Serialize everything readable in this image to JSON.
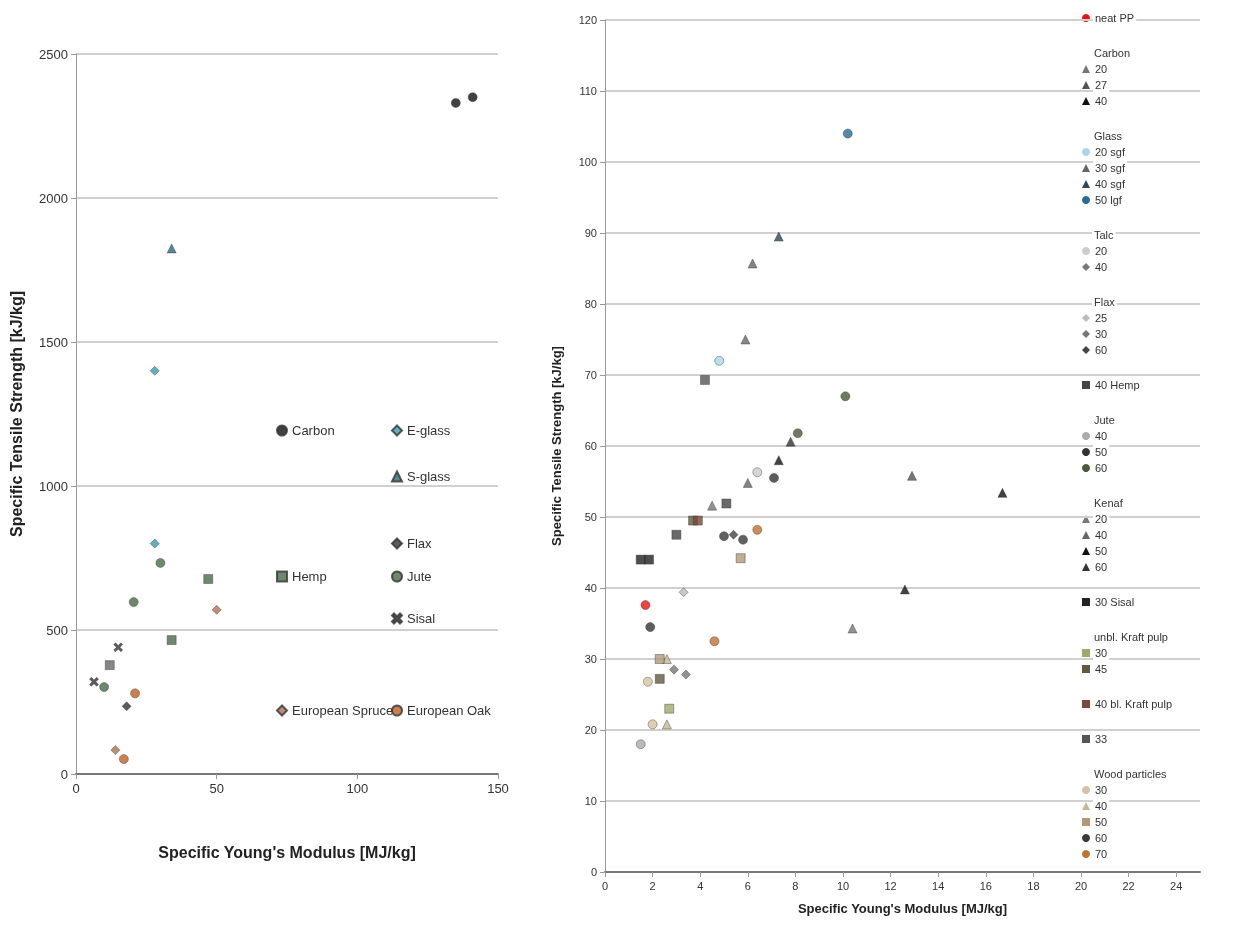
{
  "chart_data": [
    {
      "type": "scatter",
      "xlabel": "Specific Young's Modulus [MJ/kg]",
      "ylabel": "Specific Tensile Strength [kJ/kg]",
      "xlim": [
        0,
        150
      ],
      "xticks": [
        0,
        50,
        100,
        150
      ],
      "ylim": [
        0,
        2500
      ],
      "yticks": [
        0,
        500,
        1000,
        1500,
        2000,
        2500
      ],
      "grid": "y",
      "legend": "bottom right",
      "series": [
        {
          "name": "Carbon",
          "color": "#111111",
          "marker": "circle",
          "x": [
            135,
            141
          ],
          "values": [
            2330,
            2350
          ]
        },
        {
          "name": "E-glass",
          "color": "#3a9ab0",
          "marker": "diamond",
          "x": [
            28,
            28
          ],
          "values": [
            1400,
            800
          ]
        },
        {
          "name": "S-glass",
          "color": "#2a6a7a",
          "marker": "triangle",
          "x": [
            34
          ],
          "values": [
            1825
          ]
        },
        {
          "color": "#666666",
          "marker": "square",
          "x": [
            12
          ],
          "values": [
            378
          ]
        },
        {
          "name": "Flax",
          "color": "#333333",
          "marker": "diamond",
          "x": [
            18
          ],
          "values": [
            235
          ]
        },
        {
          "name": "Hemp",
          "color": "#4a6a4a",
          "marker": "square",
          "x": [
            47,
            34
          ],
          "values": [
            677,
            465
          ]
        },
        {
          "name": "Jute",
          "color": "#4a6a4a",
          "marker": "circle",
          "x": [
            10,
            20.5,
            30
          ],
          "values": [
            302,
            597,
            733
          ]
        },
        {
          "name": "Sisal",
          "color": "#333333",
          "marker": "cross",
          "x": [
            6.4,
            15
          ],
          "values": [
            320,
            440
          ]
        },
        {
          "name": "European Spruce",
          "color": "#b07050",
          "marker": "diamond",
          "x": [
            14,
            50
          ],
          "values": [
            83,
            570
          ]
        },
        {
          "name": "European Oak",
          "color": "#c06020",
          "marker": "circle",
          "x": [
            17,
            21
          ],
          "values": [
            52,
            280
          ]
        }
      ]
    },
    {
      "type": "scatter",
      "xlabel": "Specific Young's Modulus [MJ/kg]",
      "ylabel": "Specific Tensile Strength [kJ/kg]",
      "xlim": [
        0,
        25
      ],
      "xticks": [
        0,
        2,
        4,
        6,
        8,
        10,
        12,
        14,
        16,
        18,
        20,
        22,
        24
      ],
      "ylim": [
        0,
        120
      ],
      "yticks": [
        0,
        10,
        20,
        30,
        40,
        50,
        60,
        70,
        80,
        90,
        100,
        110,
        120
      ],
      "grid": "y",
      "legend": "right",
      "annotations": [
        "Carbon",
        "Glass",
        "Talc",
        "Flax",
        "Jute",
        "Kenaf",
        "unbl. Kraft pulp",
        "Wood particles"
      ],
      "series": [
        {
          "name": "neat PP",
          "color": "#ee1111",
          "marker": "circle",
          "x": [
            1.7
          ],
          "values": [
            37.6
          ]
        },
        {
          "name": "20",
          "color": "#777777",
          "marker": "triangle",
          "x": [
            10.4
          ],
          "values": [
            34.3
          ]
        },
        {
          "name": "27",
          "color": "#555555",
          "marker": "triangle",
          "x": [
            12.9
          ],
          "values": [
            55.8
          ]
        },
        {
          "name": "40",
          "color": "#111111",
          "marker": "triangle",
          "x": [
            12.6,
            16.7
          ],
          "values": [
            39.8,
            53.4
          ]
        },
        {
          "name": "20 sgf",
          "color": "#a8d8e8",
          "marker": "circle",
          "x": [
            4.8
          ],
          "values": [
            72
          ]
        },
        {
          "name": "30 sgf",
          "color": "#666666",
          "marker": "triangle",
          "x": [
            5.9,
            6.2
          ],
          "values": [
            75,
            85.7
          ]
        },
        {
          "name": "40 sgf",
          "color": "#2a4a5a",
          "marker": "triangle",
          "x": [
            7.3
          ],
          "values": [
            89.5
          ]
        },
        {
          "name": "50 lgf",
          "color": "#2a6a9a",
          "marker": "circle",
          "x": [
            10.2
          ],
          "values": [
            104
          ]
        },
        {
          "name": "20",
          "color": "#cccccc",
          "marker": "circle",
          "x": [
            6.4
          ],
          "values": [
            56.3
          ]
        },
        {
          "name": "40",
          "color": "#777777",
          "marker": "diamond",
          "x": [
            3.4
          ],
          "values": [
            27.8
          ]
        },
        {
          "name": "25",
          "color": "#bbbbbb",
          "marker": "diamond",
          "x": [
            3.3
          ],
          "values": [
            39.4
          ]
        },
        {
          "name": "30",
          "color": "#777777",
          "marker": "diamond",
          "x": [
            2.9
          ],
          "values": [
            28.5
          ]
        },
        {
          "name": "60",
          "color": "#444444",
          "marker": "diamond",
          "x": [
            5.4
          ],
          "values": [
            47.5
          ]
        },
        {
          "name": "40 Hemp",
          "color": "#444444",
          "marker": "square",
          "x": [
            5.1,
            3.0
          ],
          "values": [
            51.9,
            47.5
          ]
        },
        {
          "name": "40",
          "color": "#aaaaaa",
          "marker": "circle",
          "x": [
            1.5
          ],
          "values": [
            18
          ]
        },
        {
          "name": "50",
          "color": "#333333",
          "marker": "circle",
          "x": [
            7.1,
            1.9
          ],
          "values": [
            55.5,
            34.5
          ]
        },
        {
          "name": "60",
          "color": "#4a5a3a",
          "marker": "circle",
          "x": [
            10.1,
            8.1
          ],
          "values": [
            67,
            61.8
          ]
        },
        {
          "name": "20",
          "color": "#777777",
          "marker": "triangle",
          "x": [
            4.5
          ],
          "values": [
            51.6
          ]
        },
        {
          "name": "40",
          "color": "#666666",
          "marker": "triangle",
          "x": [
            6.0
          ],
          "values": [
            54.8
          ]
        },
        {
          "name": "50",
          "color": "#111111",
          "marker": "triangle",
          "x": [
            7.3
          ],
          "values": [
            58
          ]
        },
        {
          "name": "60",
          "color": "#333333",
          "marker": "triangle",
          "x": [
            7.8
          ],
          "values": [
            60.6
          ]
        },
        {
          "name": "30 Sisal",
          "color": "#222222",
          "marker": "square",
          "x": [
            1.5,
            1.85
          ],
          "values": [
            44,
            44
          ]
        },
        {
          "name": "30",
          "color": "#a0a870",
          "marker": "square",
          "x": [
            2.7
          ],
          "values": [
            23
          ]
        },
        {
          "name": "45",
          "color": "#605a40",
          "marker": "square",
          "x": [
            3.7,
            2.3
          ],
          "values": [
            49.5,
            27.2
          ]
        },
        {
          "name": "40 bl. Kraft pulp",
          "color": "#7a4a3a",
          "marker": "square",
          "x": [
            3.9
          ],
          "values": [
            49.5
          ]
        },
        {
          "name": "33",
          "color": "#555555",
          "marker": "square",
          "x": [
            4.2
          ],
          "values": [
            69.3
          ]
        },
        {
          "name": "30",
          "color": "#d8c0a0",
          "marker": "circle",
          "x": [
            2.0,
            1.8
          ],
          "values": [
            20.8,
            26.8
          ]
        },
        {
          "name": "40",
          "color": "#c8b890",
          "marker": "triangle",
          "x": [
            2.6,
            2.6
          ],
          "values": [
            20.8,
            30
          ]
        },
        {
          "name": "50",
          "color": "#b09878",
          "marker": "square",
          "x": [
            5.7,
            2.3
          ],
          "values": [
            44.2,
            30
          ]
        },
        {
          "name": "60",
          "color": "#3a3a3a",
          "marker": "circle",
          "x": [
            5.8,
            5.0
          ],
          "values": [
            46.8,
            47.3
          ]
        },
        {
          "name": "70",
          "color": "#c07030",
          "marker": "circle",
          "x": [
            6.4,
            4.6
          ],
          "values": [
            48.2,
            32.5
          ]
        }
      ]
    }
  ]
}
